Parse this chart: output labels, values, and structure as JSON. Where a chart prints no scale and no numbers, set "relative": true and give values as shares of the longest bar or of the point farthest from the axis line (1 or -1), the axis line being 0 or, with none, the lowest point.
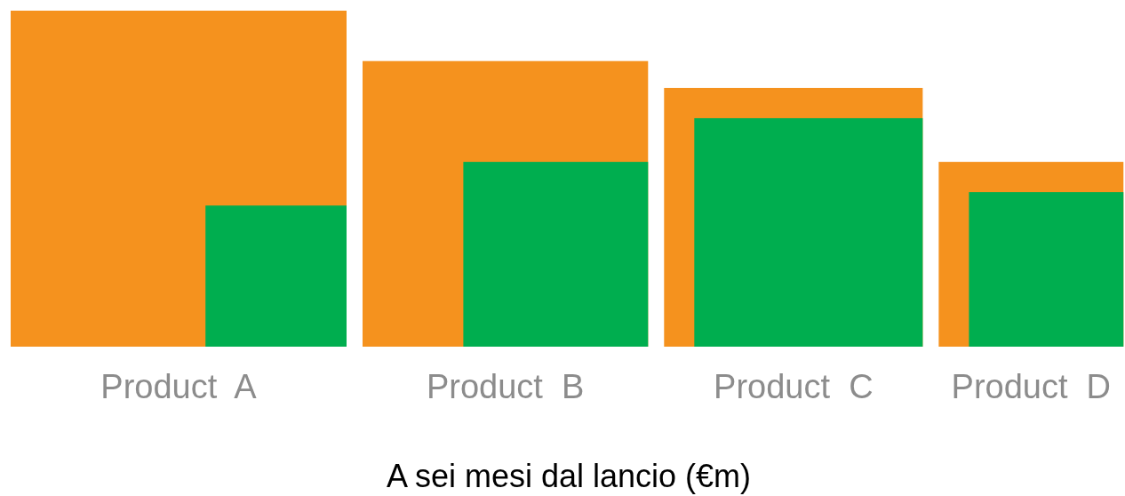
{
  "chart_data": {
    "type": "bar",
    "relative": true,
    "xlabel": "A sei mesi dal lancio (€m)",
    "categories": [
      "Product  A",
      "Product  B",
      "Product  C",
      "Product  D"
    ],
    "series": [
      {
        "color": "#f5921e",
        "values": [
          1,
          0.85,
          0.77,
          0.55
        ]
      },
      {
        "color": "#00ae4f",
        "values": [
          0.42,
          0.55,
          0.68,
          0.46
        ]
      }
    ]
  }
}
